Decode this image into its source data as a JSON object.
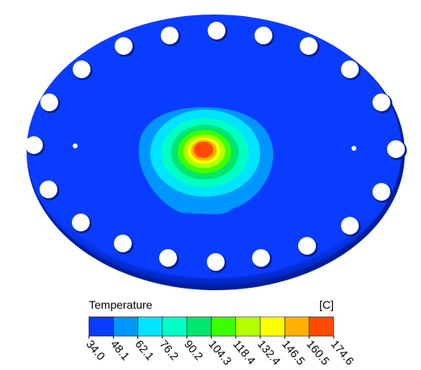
{
  "chart_data": {
    "type": "contour",
    "colorbar": {
      "title": "Temperature",
      "unit": "[C]",
      "colors": [
        "#0a3cff",
        "#0096ff",
        "#00e4ff",
        "#00ffc4",
        "#00e66e",
        "#3cff00",
        "#b4ff00",
        "#ffff00",
        "#ffb000",
        "#ff4a00"
      ],
      "ticks": [
        {
          "value": 34,
          "label": "34.0"
        },
        {
          "value": 48.1,
          "label": "48.1"
        },
        {
          "value": 62.1,
          "label": "62.1"
        },
        {
          "value": 76.2,
          "label": "76.2"
        },
        {
          "value": 90.2,
          "label": "90.2"
        },
        {
          "value": 104.3,
          "label": "104.3"
        },
        {
          "value": 118.4,
          "label": "118.4"
        },
        {
          "value": 132.4,
          "label": "132.4"
        },
        {
          "value": 146.5,
          "label": "146.5"
        },
        {
          "value": 160.5,
          "label": "160.5"
        },
        {
          "value": 174.6,
          "label": "174.6"
        }
      ]
    }
  }
}
